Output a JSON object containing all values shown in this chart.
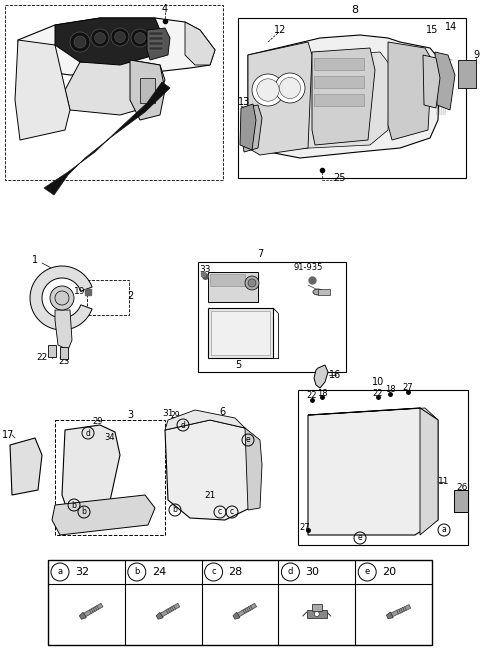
{
  "bg_color": "#ffffff",
  "line_color": "#000000",
  "gray_fill": "#e8e8e8",
  "dark_fill": "#1a1a1a",
  "table_labels": [
    [
      "a",
      "32"
    ],
    [
      "b",
      "24"
    ],
    [
      "c",
      "28"
    ],
    [
      "d",
      "30"
    ],
    [
      "e",
      "20"
    ]
  ],
  "fig_width": 4.8,
  "fig_height": 6.52,
  "dpi": 100
}
